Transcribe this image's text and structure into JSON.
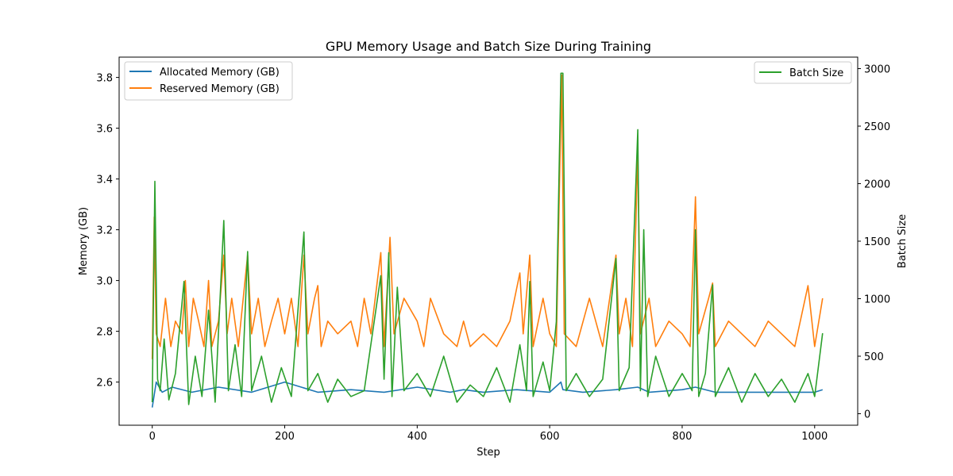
{
  "chart_data": {
    "type": "line",
    "title": "GPU Memory Usage and Batch Size During Training",
    "xlabel": "Step",
    "ylabel_left": "Memory (GB)",
    "ylabel_right": "Batch Size",
    "xlim": [
      -50,
      1065
    ],
    "ylim_left": [
      2.43,
      3.88
    ],
    "ylim_right": [
      -100,
      3100
    ],
    "x_ticks": [
      0,
      200,
      400,
      600,
      800,
      1000
    ],
    "y_ticks_left": [
      2.6,
      2.8,
      3.0,
      3.2,
      3.4,
      3.6,
      3.8
    ],
    "y_ticks_right": [
      0,
      500,
      1000,
      1500,
      2000,
      2500,
      3000
    ],
    "legend_left": "upper-left",
    "legend_right": "upper-right",
    "grid": false,
    "colors": {
      "allocated": "#1f77b4",
      "reserved": "#ff7f0e",
      "batch": "#2ca02c"
    },
    "series": [
      {
        "name": "Allocated Memory (GB)",
        "axis": "left",
        "points": [
          [
            0,
            2.5
          ],
          [
            3,
            2.55
          ],
          [
            6,
            2.6
          ],
          [
            15,
            2.56
          ],
          [
            30,
            2.58
          ],
          [
            60,
            2.56
          ],
          [
            100,
            2.58
          ],
          [
            150,
            2.56
          ],
          [
            200,
            2.6
          ],
          [
            250,
            2.56
          ],
          [
            300,
            2.57
          ],
          [
            350,
            2.56
          ],
          [
            400,
            2.58
          ],
          [
            450,
            2.56
          ],
          [
            470,
            2.57
          ],
          [
            500,
            2.56
          ],
          [
            550,
            2.57
          ],
          [
            600,
            2.56
          ],
          [
            617,
            2.6
          ],
          [
            620,
            2.57
          ],
          [
            650,
            2.56
          ],
          [
            700,
            2.57
          ],
          [
            733,
            2.58
          ],
          [
            750,
            2.56
          ],
          [
            800,
            2.57
          ],
          [
            820,
            2.58
          ],
          [
            850,
            2.56
          ],
          [
            900,
            2.56
          ],
          [
            950,
            2.56
          ],
          [
            1000,
            2.56
          ],
          [
            1012,
            2.57
          ]
        ]
      },
      {
        "name": "Reserved Memory (GB)",
        "axis": "left",
        "points": [
          [
            0,
            2.69
          ],
          [
            3,
            3.25
          ],
          [
            6,
            2.79
          ],
          [
            12,
            2.74
          ],
          [
            20,
            2.93
          ],
          [
            28,
            2.74
          ],
          [
            35,
            2.84
          ],
          [
            45,
            2.79
          ],
          [
            50,
            3.0
          ],
          [
            55,
            2.74
          ],
          [
            62,
            2.93
          ],
          [
            70,
            2.84
          ],
          [
            78,
            2.74
          ],
          [
            85,
            3.0
          ],
          [
            90,
            2.74
          ],
          [
            100,
            2.84
          ],
          [
            108,
            3.1
          ],
          [
            113,
            2.79
          ],
          [
            120,
            2.93
          ],
          [
            130,
            2.74
          ],
          [
            144,
            3.1
          ],
          [
            150,
            2.79
          ],
          [
            160,
            2.93
          ],
          [
            170,
            2.74
          ],
          [
            180,
            2.84
          ],
          [
            190,
            2.93
          ],
          [
            200,
            2.79
          ],
          [
            210,
            2.93
          ],
          [
            220,
            2.74
          ],
          [
            229,
            3.1
          ],
          [
            235,
            2.79
          ],
          [
            245,
            2.93
          ],
          [
            250,
            2.98
          ],
          [
            255,
            2.74
          ],
          [
            265,
            2.84
          ],
          [
            280,
            2.79
          ],
          [
            300,
            2.84
          ],
          [
            310,
            2.74
          ],
          [
            320,
            2.93
          ],
          [
            330,
            2.79
          ],
          [
            345,
            3.11
          ],
          [
            350,
            2.74
          ],
          [
            359,
            3.17
          ],
          [
            365,
            2.79
          ],
          [
            380,
            2.93
          ],
          [
            400,
            2.84
          ],
          [
            410,
            2.74
          ],
          [
            420,
            2.93
          ],
          [
            440,
            2.79
          ],
          [
            460,
            2.74
          ],
          [
            470,
            2.84
          ],
          [
            480,
            2.74
          ],
          [
            500,
            2.79
          ],
          [
            520,
            2.74
          ],
          [
            540,
            2.84
          ],
          [
            555,
            3.03
          ],
          [
            560,
            2.79
          ],
          [
            570,
            3.1
          ],
          [
            575,
            2.74
          ],
          [
            590,
            2.93
          ],
          [
            600,
            2.79
          ],
          [
            610,
            2.74
          ],
          [
            618,
            3.81
          ],
          [
            622,
            2.79
          ],
          [
            640,
            2.74
          ],
          [
            660,
            2.93
          ],
          [
            680,
            2.74
          ],
          [
            700,
            3.1
          ],
          [
            705,
            2.79
          ],
          [
            715,
            2.93
          ],
          [
            725,
            2.74
          ],
          [
            733,
            3.5
          ],
          [
            737,
            2.79
          ],
          [
            750,
            2.93
          ],
          [
            760,
            2.74
          ],
          [
            780,
            2.84
          ],
          [
            800,
            2.79
          ],
          [
            812,
            2.74
          ],
          [
            820,
            3.33
          ],
          [
            825,
            2.79
          ],
          [
            840,
            2.93
          ],
          [
            846,
            2.99
          ],
          [
            850,
            2.74
          ],
          [
            870,
            2.84
          ],
          [
            890,
            2.79
          ],
          [
            910,
            2.74
          ],
          [
            930,
            2.84
          ],
          [
            950,
            2.79
          ],
          [
            970,
            2.74
          ],
          [
            990,
            2.98
          ],
          [
            1000,
            2.74
          ],
          [
            1012,
            2.93
          ]
        ]
      },
      {
        "name": "Batch Size",
        "axis": "right",
        "points": [
          [
            0,
            100
          ],
          [
            4,
            2020
          ],
          [
            8,
            300
          ],
          [
            12,
            200
          ],
          [
            18,
            650
          ],
          [
            25,
            120
          ],
          [
            35,
            350
          ],
          [
            48,
            1150
          ],
          [
            55,
            80
          ],
          [
            65,
            500
          ],
          [
            75,
            150
          ],
          [
            85,
            900
          ],
          [
            95,
            100
          ],
          [
            108,
            1680
          ],
          [
            115,
            200
          ],
          [
            125,
            600
          ],
          [
            135,
            150
          ],
          [
            144,
            1410
          ],
          [
            150,
            200
          ],
          [
            165,
            500
          ],
          [
            180,
            100
          ],
          [
            195,
            400
          ],
          [
            210,
            150
          ],
          [
            229,
            1580
          ],
          [
            235,
            200
          ],
          [
            250,
            350
          ],
          [
            265,
            100
          ],
          [
            280,
            300
          ],
          [
            300,
            150
          ],
          [
            320,
            200
          ],
          [
            345,
            1200
          ],
          [
            350,
            300
          ],
          [
            357,
            1400
          ],
          [
            362,
            150
          ],
          [
            370,
            1100
          ],
          [
            380,
            200
          ],
          [
            400,
            350
          ],
          [
            420,
            150
          ],
          [
            440,
            500
          ],
          [
            460,
            100
          ],
          [
            480,
            250
          ],
          [
            500,
            150
          ],
          [
            520,
            400
          ],
          [
            540,
            100
          ],
          [
            555,
            600
          ],
          [
            565,
            200
          ],
          [
            570,
            1150
          ],
          [
            575,
            150
          ],
          [
            590,
            450
          ],
          [
            600,
            200
          ],
          [
            610,
            800
          ],
          [
            617,
            2960
          ],
          [
            620,
            2960
          ],
          [
            625,
            200
          ],
          [
            640,
            350
          ],
          [
            660,
            150
          ],
          [
            680,
            300
          ],
          [
            700,
            1350
          ],
          [
            705,
            200
          ],
          [
            720,
            400
          ],
          [
            733,
            2470
          ],
          [
            737,
            200
          ],
          [
            742,
            1600
          ],
          [
            748,
            150
          ],
          [
            760,
            500
          ],
          [
            780,
            150
          ],
          [
            800,
            350
          ],
          [
            815,
            200
          ],
          [
            820,
            1600
          ],
          [
            825,
            150
          ],
          [
            835,
            350
          ],
          [
            846,
            1120
          ],
          [
            850,
            150
          ],
          [
            870,
            400
          ],
          [
            890,
            100
          ],
          [
            910,
            350
          ],
          [
            930,
            150
          ],
          [
            950,
            300
          ],
          [
            970,
            100
          ],
          [
            990,
            350
          ],
          [
            1000,
            150
          ],
          [
            1012,
            700
          ]
        ]
      }
    ]
  }
}
